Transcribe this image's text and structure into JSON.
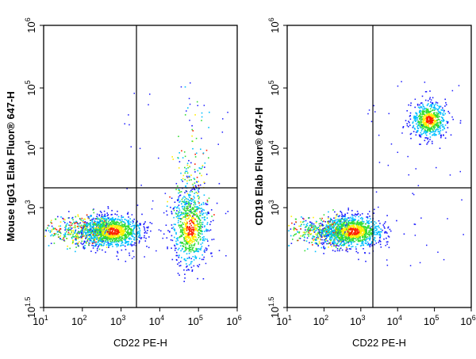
{
  "chart_data": [
    {
      "type": "scatter",
      "subtype": "flow-cytometry-density-dot-plot",
      "title": "",
      "xlabel": "CD22 PE-H",
      "ylabel": "Mouse IgG1 Elab Fluor® 647-H",
      "x_scale": "log",
      "y_scale": "log",
      "xlim": [
        10,
        1000000
      ],
      "ylim": [
        31.6,
        1000000
      ],
      "x_ticks": [
        {
          "base": "10",
          "exp": "1",
          "value": 10
        },
        {
          "base": "10",
          "exp": "2",
          "value": 100
        },
        {
          "base": "10",
          "exp": "3",
          "value": 1000
        },
        {
          "base": "10",
          "exp": "4",
          "value": 10000
        },
        {
          "base": "10",
          "exp": "5",
          "value": 100000
        },
        {
          "base": "10",
          "exp": "6",
          "value": 1000000
        }
      ],
      "y_ticks": [
        {
          "base": "10",
          "exp": "1.5",
          "value": 31.6
        },
        {
          "base": "10",
          "exp": "3",
          "value": 1000
        },
        {
          "base": "10",
          "exp": "4",
          "value": 10000
        },
        {
          "base": "10",
          "exp": "5",
          "value": 100000
        },
        {
          "base": "10",
          "exp": "6",
          "value": 1000000
        }
      ],
      "gate": {
        "x": 2500,
        "y": 2000
      },
      "populations": [
        {
          "x_center": 600,
          "y_center": 450,
          "density": "high"
        },
        {
          "x_center": 60000,
          "y_center": 500,
          "density": "medium"
        }
      ]
    },
    {
      "type": "scatter",
      "subtype": "flow-cytometry-density-dot-plot",
      "title": "",
      "xlabel": "CD22 PE-H",
      "ylabel": "CD19 Elab Fluor® 647-H",
      "x_scale": "log",
      "y_scale": "log",
      "xlim": [
        10,
        1000000
      ],
      "ylim": [
        31.6,
        1000000
      ],
      "x_ticks": [
        {
          "base": "10",
          "exp": "1",
          "value": 10
        },
        {
          "base": "10",
          "exp": "2",
          "value": 100
        },
        {
          "base": "10",
          "exp": "3",
          "value": 1000
        },
        {
          "base": "10",
          "exp": "4",
          "value": 10000
        },
        {
          "base": "10",
          "exp": "5",
          "value": 100000
        },
        {
          "base": "10",
          "exp": "6",
          "value": 1000000
        }
      ],
      "y_ticks": [
        {
          "base": "10",
          "exp": "1.5",
          "value": 31.6
        },
        {
          "base": "10",
          "exp": "3",
          "value": 1000
        },
        {
          "base": "10",
          "exp": "4",
          "value": 10000
        },
        {
          "base": "10",
          "exp": "5",
          "value": 100000
        },
        {
          "base": "10",
          "exp": "6",
          "value": 1000000
        }
      ],
      "gate": {
        "x": 2500,
        "y": 2000
      },
      "populations": [
        {
          "x_center": 600,
          "y_center": 450,
          "density": "high"
        },
        {
          "x_center": 70000,
          "y_center": 30000,
          "density": "medium"
        }
      ]
    }
  ],
  "colors": {
    "sparse": "#1a1aff",
    "medium": "#00bfff",
    "dense": "#33dd33",
    "denser": "#ffee00",
    "densest": "#ff2200",
    "frame": "#000000",
    "gate": "#000000"
  }
}
